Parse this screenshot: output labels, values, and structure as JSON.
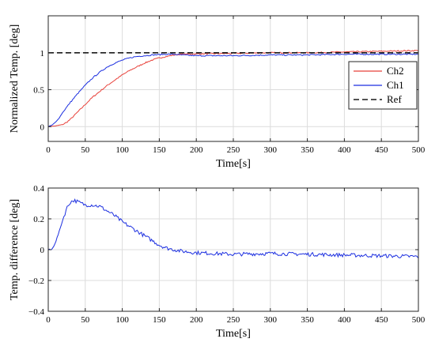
{
  "chart_data": [
    {
      "type": "line",
      "xlabel": "Time[s]",
      "ylabel": "Normalized Temp. [deg]",
      "xlim": [
        0,
        500
      ],
      "ylim": [
        -0.2,
        1.5
      ],
      "xticks": [
        0,
        50,
        100,
        150,
        200,
        250,
        300,
        350,
        400,
        450,
        500
      ],
      "yticks": [
        0,
        0.5,
        1
      ],
      "ytick_labels": [
        "0",
        "0.5",
        "1"
      ],
      "grid": true,
      "legend": "right",
      "series": [
        {
          "name": "Ch2",
          "color": "#e8413a",
          "dash": "",
          "x": [
            0,
            10,
            20,
            25,
            30,
            35,
            40,
            50,
            60,
            70,
            80,
            90,
            100,
            110,
            120,
            130,
            140,
            150,
            160,
            170,
            180,
            200,
            250,
            300,
            350,
            400,
            450,
            500
          ],
          "y": [
            0,
            0.01,
            0.03,
            0.06,
            0.1,
            0.15,
            0.2,
            0.3,
            0.4,
            0.48,
            0.56,
            0.63,
            0.7,
            0.76,
            0.81,
            0.86,
            0.9,
            0.93,
            0.95,
            0.97,
            0.98,
            0.985,
            0.99,
            1.0,
            1.0,
            1.01,
            1.02,
            1.03
          ]
        },
        {
          "name": "Ch1",
          "color": "#1c2fe0",
          "dash": "",
          "x": [
            0,
            5,
            10,
            15,
            20,
            30,
            40,
            50,
            60,
            70,
            80,
            90,
            100,
            110,
            120,
            130,
            140,
            150,
            160,
            170,
            180,
            200,
            250,
            300,
            350,
            400,
            450,
            500
          ],
          "y": [
            0,
            0.02,
            0.06,
            0.12,
            0.2,
            0.33,
            0.45,
            0.56,
            0.66,
            0.74,
            0.81,
            0.86,
            0.9,
            0.93,
            0.95,
            0.96,
            0.97,
            0.975,
            0.98,
            0.98,
            0.97,
            0.96,
            0.96,
            0.97,
            0.97,
            0.98,
            0.98,
            0.98
          ]
        },
        {
          "name": "Ref",
          "color": "#1a1a1a",
          "dash": "7,4",
          "x": [
            0,
            500
          ],
          "y": [
            1,
            1
          ]
        }
      ]
    },
    {
      "type": "line",
      "xlabel": "Time[s]",
      "ylabel": "Temp. difference [deg]",
      "xlim": [
        0,
        500
      ],
      "ylim": [
        -0.4,
        0.4
      ],
      "xticks": [
        0,
        50,
        100,
        150,
        200,
        250,
        300,
        350,
        400,
        450,
        500
      ],
      "yticks": [
        -0.4,
        -0.2,
        0,
        0.2,
        0.4
      ],
      "ytick_labels": [
        "−0.4",
        "−0.2",
        "0",
        "0.2",
        "0.4"
      ],
      "grid": true,
      "series": [
        {
          "name": "",
          "color": "#1c2fe0",
          "dash": "",
          "x": [
            0,
            5,
            10,
            15,
            20,
            25,
            30,
            35,
            40,
            50,
            60,
            70,
            80,
            90,
            100,
            110,
            120,
            130,
            140,
            150,
            160,
            170,
            180,
            200,
            250,
            300,
            350,
            400,
            450,
            500
          ],
          "y": [
            0,
            0.0,
            0.05,
            0.12,
            0.2,
            0.27,
            0.31,
            0.32,
            0.31,
            0.29,
            0.29,
            0.28,
            0.25,
            0.22,
            0.18,
            0.15,
            0.12,
            0.09,
            0.06,
            0.03,
            0.01,
            0.0,
            -0.01,
            -0.02,
            -0.03,
            -0.025,
            -0.03,
            -0.035,
            -0.04,
            -0.045
          ]
        }
      ]
    }
  ]
}
